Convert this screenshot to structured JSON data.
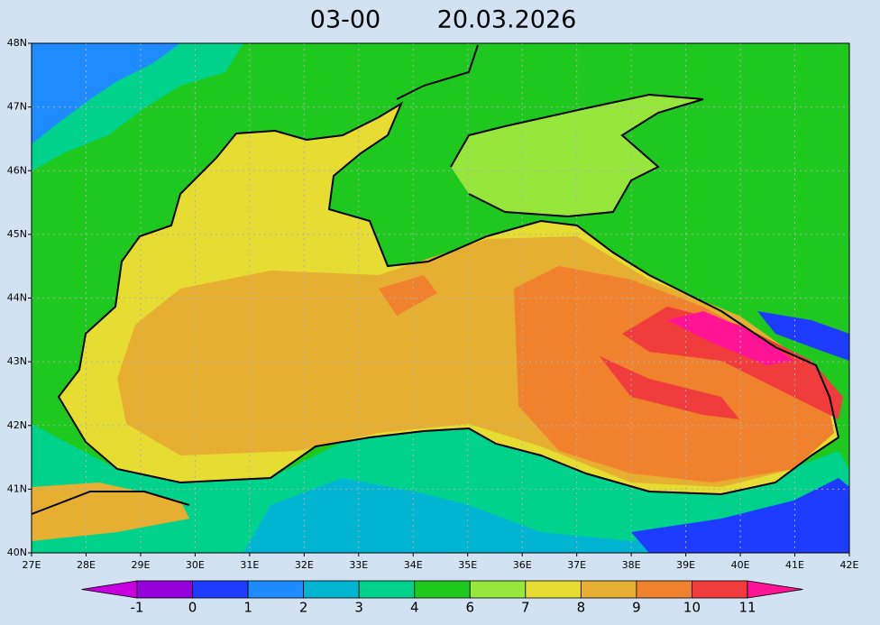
{
  "title": {
    "time": "03-00",
    "date": "20.03.2026"
  },
  "map": {
    "lonlim": [
      27,
      42
    ],
    "latlim": [
      40,
      48
    ],
    "lat_ticks": [
      {
        "value": 48,
        "label": "48N"
      },
      {
        "value": 47,
        "label": "47N"
      },
      {
        "value": 46,
        "label": "46N"
      },
      {
        "value": 45,
        "label": "45N"
      },
      {
        "value": 44,
        "label": "44N"
      },
      {
        "value": 43,
        "label": "43N"
      },
      {
        "value": 42,
        "label": "42N"
      },
      {
        "value": 41,
        "label": "41N"
      },
      {
        "value": 40,
        "label": "40N"
      }
    ],
    "lon_ticks": [
      {
        "value": 27,
        "label": "27E"
      },
      {
        "value": 28,
        "label": "28E"
      },
      {
        "value": 29,
        "label": "29E"
      },
      {
        "value": 30,
        "label": "30E"
      },
      {
        "value": 31,
        "label": "31E"
      },
      {
        "value": 32,
        "label": "32E"
      },
      {
        "value": 33,
        "label": "33E"
      },
      {
        "value": 34,
        "label": "34E"
      },
      {
        "value": 35,
        "label": "35E"
      },
      {
        "value": 36,
        "label": "36E"
      },
      {
        "value": 37,
        "label": "37E"
      },
      {
        "value": 38,
        "label": "38E"
      },
      {
        "value": 39,
        "label": "39E"
      },
      {
        "value": 40,
        "label": "40E"
      },
      {
        "value": 41,
        "label": "41E"
      },
      {
        "value": 42,
        "label": "42E"
      }
    ]
  },
  "colorbar": {
    "levels": [
      -1,
      0,
      1,
      2,
      3,
      4,
      6,
      7,
      8,
      9,
      10,
      11
    ],
    "colors": [
      "#c800e0",
      "#9600dc",
      "#1e3cff",
      "#1e8cff",
      "#00b4d2",
      "#00d28c",
      "#1ec81e",
      "#96e63c",
      "#e6dc32",
      "#e6af32",
      "#f0822d",
      "#f03c3c",
      "#ff1496"
    ]
  }
}
